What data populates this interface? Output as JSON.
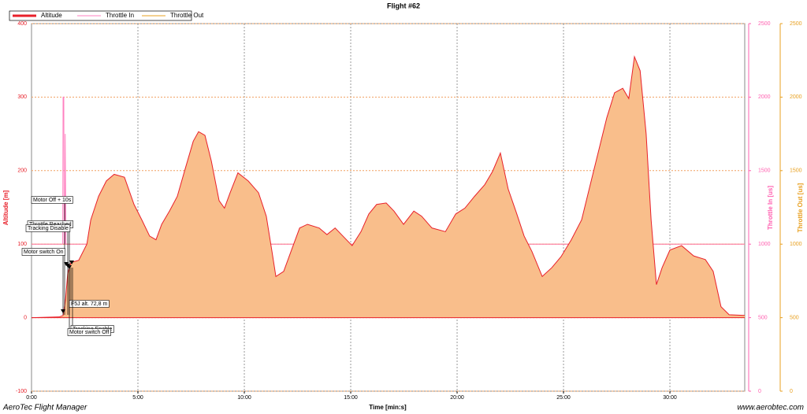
{
  "chart_data": {
    "type": "area",
    "title": "Flight #62",
    "x_label": "Time [min:s]",
    "y_label": "Altitude [m]",
    "y2_label": "Throttle In [us]",
    "y3_label": "Throttle Out [us]",
    "xlim": [
      0,
      2011
    ],
    "xticks": [
      {
        "value": 0,
        "label": "0:00"
      },
      {
        "value": 300,
        "label": "5:00"
      },
      {
        "value": 600,
        "label": "10:00"
      },
      {
        "value": 900,
        "label": "15:00"
      },
      {
        "value": 1200,
        "label": "20:00"
      },
      {
        "value": 1500,
        "label": "25:00"
      },
      {
        "value": 1800,
        "label": "30:00"
      }
    ],
    "ylim": [
      -100,
      400
    ],
    "yticks": [
      -100,
      0,
      100,
      200,
      300,
      400
    ],
    "y2lim": [
      0,
      2500
    ],
    "y2ticks": [
      0,
      500,
      1000,
      1500,
      2000,
      2500
    ],
    "y3lim": [
      0,
      2500
    ],
    "y3ticks": [
      0,
      500,
      1000,
      1500,
      2000,
      2500
    ],
    "grid": true,
    "series": [
      {
        "name": "Altitude",
        "color": "#e8202a",
        "fill": "#f9be8b",
        "x": [
          0,
          78,
          89,
          96,
          102,
          111,
          133,
          156,
          167,
          189,
          211,
          233,
          262,
          289,
          311,
          333,
          351,
          367,
          389,
          411,
          433,
          456,
          471,
          489,
          507,
          529,
          544,
          560,
          582,
          611,
          640,
          662,
          678,
          689,
          711,
          733,
          756,
          778,
          811,
          833,
          856,
          878,
          904,
          929,
          951,
          973,
          1000,
          1022,
          1049,
          1078,
          1100,
          1129,
          1167,
          1196,
          1222,
          1249,
          1278,
          1300,
          1322,
          1344,
          1367,
          1389,
          1411,
          1440,
          1467,
          1493,
          1522,
          1551,
          1578,
          1600,
          1622,
          1644,
          1667,
          1684,
          1700,
          1716,
          1733,
          1747,
          1762,
          1778,
          1800,
          1833,
          1867,
          1900,
          1922,
          1944,
          1967,
          2011
        ],
        "values": [
          0,
          1,
          3,
          25,
          60,
          75,
          78,
          100,
          133,
          165,
          186,
          195,
          191,
          154,
          133,
          111,
          106,
          127,
          145,
          165,
          202,
          240,
          253,
          248,
          213,
          159,
          149,
          170,
          197,
          186,
          170,
          138,
          90,
          56,
          63,
          92,
          122,
          127,
          122,
          113,
          122,
          111,
          98,
          117,
          141,
          154,
          156,
          145,
          127,
          145,
          138,
          122,
          117,
          141,
          149,
          165,
          181,
          199,
          224,
          175,
          143,
          111,
          90,
          56,
          68,
          83,
          106,
          133,
          186,
          229,
          272,
          306,
          312,
          298,
          355,
          336,
          250,
          133,
          45,
          68,
          92,
          98,
          84,
          79,
          63,
          15,
          4,
          3
        ]
      },
      {
        "name": "Throttle In",
        "color": "#ff80c0",
        "axis": "y2",
        "x": [
          0,
          88,
          89,
          91,
          92,
          94,
          95,
          97,
          2011
        ],
        "values": [
          1000,
          1000,
          2000,
          2000,
          1000,
          1000,
          1750,
          1000,
          1000
        ]
      },
      {
        "name": "Throttle Out",
        "color": "#e8a020",
        "axis": "y3",
        "x": [
          0,
          2011
        ],
        "values": [
          1000,
          1000
        ]
      }
    ],
    "annotations": [
      "Motor Off + 10s",
      "Throttle Reached",
      "Tracking Disable",
      "Motor switch On",
      "F5J alt. 72,8 m",
      "Tracking Enable",
      "Motor switch Off"
    ]
  },
  "footer": {
    "left": "AeroTec Flight Manager",
    "right": "www.aerobtec.com"
  }
}
